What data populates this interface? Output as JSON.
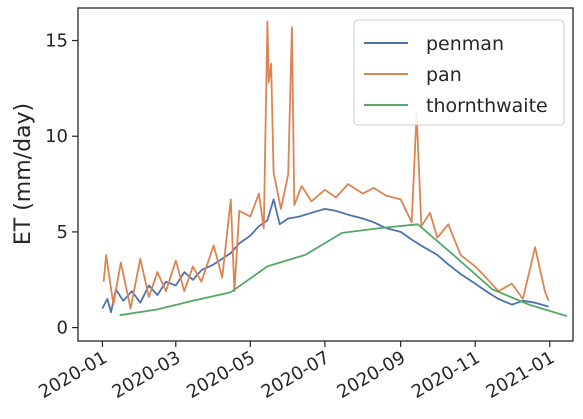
{
  "chart_data": {
    "type": "line",
    "title": "",
    "xlabel": "",
    "ylabel": "ET (mm/day)",
    "x_ticks": [
      "2020-01",
      "2020-03",
      "2020-05",
      "2020-07",
      "2020-09",
      "2020-11",
      "2021-01"
    ],
    "y_ticks": [
      0,
      5,
      10,
      15
    ],
    "xlim": [
      "2019-12-12",
      "2021-01-20"
    ],
    "ylim": [
      -0.7,
      16.7
    ],
    "grid": false,
    "legend_position": "top-right",
    "series": [
      {
        "name": "penman",
        "color": "#4c72b0",
        "points": [
          [
            "2020-01-01",
            1.0
          ],
          [
            "2020-01-05",
            1.5
          ],
          [
            "2020-01-08",
            0.8
          ],
          [
            "2020-01-12",
            2.0
          ],
          [
            "2020-01-18",
            1.4
          ],
          [
            "2020-01-25",
            1.9
          ],
          [
            "2020-02-01",
            1.3
          ],
          [
            "2020-02-08",
            2.2
          ],
          [
            "2020-02-15",
            1.7
          ],
          [
            "2020-02-22",
            2.4
          ],
          [
            "2020-03-01",
            2.2
          ],
          [
            "2020-03-08",
            2.9
          ],
          [
            "2020-03-15",
            2.5
          ],
          [
            "2020-03-22",
            3.0
          ],
          [
            "2020-04-01",
            3.3
          ],
          [
            "2020-04-08",
            3.6
          ],
          [
            "2020-04-15",
            3.9
          ],
          [
            "2020-04-22",
            4.4
          ],
          [
            "2020-05-01",
            4.8
          ],
          [
            "2020-05-08",
            5.3
          ],
          [
            "2020-05-15",
            5.6
          ],
          [
            "2020-05-20",
            6.7
          ],
          [
            "2020-05-25",
            5.4
          ],
          [
            "2020-06-01",
            5.7
          ],
          [
            "2020-06-10",
            5.8
          ],
          [
            "2020-06-20",
            6.0
          ],
          [
            "2020-07-01",
            6.2
          ],
          [
            "2020-07-10",
            6.1
          ],
          [
            "2020-07-20",
            5.9
          ],
          [
            "2020-08-01",
            5.7
          ],
          [
            "2020-08-10",
            5.5
          ],
          [
            "2020-08-20",
            5.2
          ],
          [
            "2020-09-01",
            5.0
          ],
          [
            "2020-09-10",
            4.6
          ],
          [
            "2020-09-20",
            4.2
          ],
          [
            "2020-10-01",
            3.8
          ],
          [
            "2020-10-10",
            3.3
          ],
          [
            "2020-10-20",
            2.8
          ],
          [
            "2020-11-01",
            2.3
          ],
          [
            "2020-11-10",
            1.9
          ],
          [
            "2020-11-20",
            1.5
          ],
          [
            "2020-12-01",
            1.2
          ],
          [
            "2020-12-10",
            1.4
          ],
          [
            "2020-12-20",
            1.3
          ],
          [
            "2020-12-31",
            1.1
          ]
        ]
      },
      {
        "name": "pan",
        "color": "#dd8452",
        "points": [
          [
            "2020-01-02",
            2.4
          ],
          [
            "2020-01-04",
            3.8
          ],
          [
            "2020-01-10",
            1.2
          ],
          [
            "2020-01-16",
            3.4
          ],
          [
            "2020-01-24",
            1.0
          ],
          [
            "2020-02-01",
            3.6
          ],
          [
            "2020-02-08",
            1.6
          ],
          [
            "2020-02-15",
            2.9
          ],
          [
            "2020-02-22",
            1.9
          ],
          [
            "2020-03-01",
            3.5
          ],
          [
            "2020-03-08",
            1.9
          ],
          [
            "2020-03-15",
            3.2
          ],
          [
            "2020-03-22",
            2.4
          ],
          [
            "2020-04-01",
            4.3
          ],
          [
            "2020-04-08",
            2.6
          ],
          [
            "2020-04-15",
            6.7
          ],
          [
            "2020-04-18",
            1.9
          ],
          [
            "2020-04-22",
            6.1
          ],
          [
            "2020-05-01",
            5.8
          ],
          [
            "2020-05-08",
            7.0
          ],
          [
            "2020-05-12",
            5.2
          ],
          [
            "2020-05-15",
            16.0
          ],
          [
            "2020-05-16",
            12.8
          ],
          [
            "2020-05-18",
            13.8
          ],
          [
            "2020-05-20",
            8.1
          ],
          [
            "2020-05-26",
            6.2
          ],
          [
            "2020-06-01",
            8.0
          ],
          [
            "2020-06-04",
            15.7
          ],
          [
            "2020-06-06",
            6.4
          ],
          [
            "2020-06-12",
            7.4
          ],
          [
            "2020-06-20",
            6.6
          ],
          [
            "2020-07-01",
            7.2
          ],
          [
            "2020-07-10",
            6.8
          ],
          [
            "2020-07-20",
            7.5
          ],
          [
            "2020-08-01",
            7.0
          ],
          [
            "2020-08-10",
            7.3
          ],
          [
            "2020-08-20",
            6.9
          ],
          [
            "2020-09-01",
            6.7
          ],
          [
            "2020-09-10",
            5.5
          ],
          [
            "2020-09-14",
            11.2
          ],
          [
            "2020-09-18",
            5.3
          ],
          [
            "2020-09-25",
            6.0
          ],
          [
            "2020-10-01",
            4.7
          ],
          [
            "2020-10-10",
            5.4
          ],
          [
            "2020-10-20",
            3.8
          ],
          [
            "2020-11-01",
            3.2
          ],
          [
            "2020-11-10",
            2.6
          ],
          [
            "2020-11-20",
            1.9
          ],
          [
            "2020-12-01",
            2.3
          ],
          [
            "2020-12-10",
            1.5
          ],
          [
            "2020-12-20",
            4.2
          ],
          [
            "2020-12-28",
            1.9
          ],
          [
            "2020-12-31",
            1.4
          ]
        ]
      },
      {
        "name": "thornthwaite",
        "color": "#55a868",
        "points": [
          [
            "2020-01-15",
            0.65
          ],
          [
            "2020-02-15",
            0.95
          ],
          [
            "2020-03-15",
            1.4
          ],
          [
            "2020-04-15",
            1.85
          ],
          [
            "2020-05-15",
            3.2
          ],
          [
            "2020-06-15",
            3.8
          ],
          [
            "2020-07-15",
            4.95
          ],
          [
            "2020-08-15",
            5.2
          ],
          [
            "2020-09-15",
            5.4
          ],
          [
            "2020-10-15",
            3.75
          ],
          [
            "2020-11-15",
            2.0
          ],
          [
            "2020-12-15",
            1.2
          ],
          [
            "2021-01-15",
            0.6
          ]
        ]
      }
    ]
  }
}
